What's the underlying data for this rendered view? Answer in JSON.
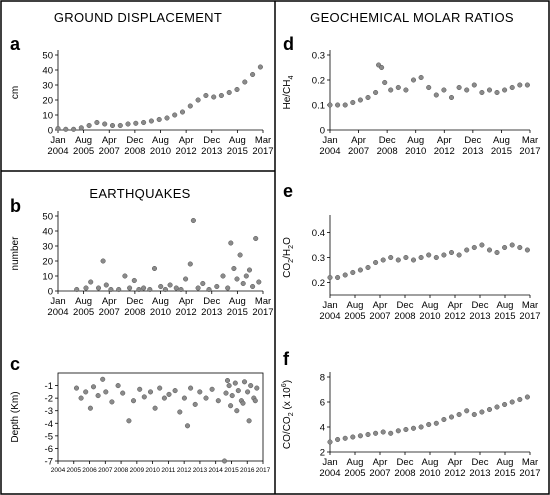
{
  "titles": {
    "left_top": "GROUND DISPLACEMENT",
    "left_mid": "EARTHQUAKES",
    "right_top": "GEOCHEMICAL MOLAR RATIOS"
  },
  "chart_data": [
    {
      "panel": "a",
      "type": "scatter",
      "title": "",
      "ylabel": "cm",
      "xlabel": "",
      "xlim": [
        2004.0,
        2017.17
      ],
      "ylim": [
        0,
        50
      ],
      "yticks": [
        0,
        10,
        20,
        30,
        40,
        50
      ],
      "xtick_labels": [
        [
          "Jan",
          "2004"
        ],
        [
          "Aug",
          "2005"
        ],
        [
          "Apr",
          "2007"
        ],
        [
          "Dec",
          "2008"
        ],
        [
          "Aug",
          "2010"
        ],
        [
          "Apr",
          "2012"
        ],
        [
          "Dec",
          "2013"
        ],
        [
          "Aug",
          "2015"
        ],
        [
          "Mar",
          "2017"
        ]
      ],
      "x": [
        2004.0,
        2004.5,
        2005.0,
        2005.5,
        2006.0,
        2006.5,
        2007.0,
        2007.5,
        2008.0,
        2008.5,
        2009.0,
        2009.5,
        2010.0,
        2010.5,
        2011.0,
        2011.5,
        2012.0,
        2012.5,
        2013.0,
        2013.5,
        2014.0,
        2014.5,
        2015.0,
        2015.5,
        2016.0,
        2016.5,
        2017.0
      ],
      "y": [
        1,
        0.5,
        0.5,
        1.5,
        3,
        5,
        4,
        3,
        3,
        4,
        4.5,
        5,
        6,
        7,
        8,
        10,
        12,
        16,
        20,
        23,
        22,
        23,
        25,
        27,
        32,
        37,
        42
      ]
    },
    {
      "panel": "b",
      "type": "scatter",
      "title": "",
      "ylabel": "number",
      "xlabel": "",
      "xlim": [
        2004.0,
        2017.17
      ],
      "ylim": [
        0,
        50
      ],
      "yticks": [
        0,
        10,
        20,
        30,
        40,
        50
      ],
      "xtick_labels": [
        [
          "Jan",
          "2004"
        ],
        [
          "Aug",
          "2005"
        ],
        [
          "Apr",
          "2007"
        ],
        [
          "Dec",
          "2008"
        ],
        [
          "Aug",
          "2010"
        ],
        [
          "Apr",
          "2012"
        ],
        [
          "Dec",
          "2013"
        ],
        [
          "Aug",
          "2015"
        ],
        [
          "Mar",
          "2017"
        ]
      ],
      "x": [
        2005.2,
        2005.8,
        2006.1,
        2006.6,
        2006.9,
        2007.1,
        2007.4,
        2007.9,
        2008.3,
        2008.6,
        2008.9,
        2009.2,
        2009.5,
        2009.9,
        2010.2,
        2010.6,
        2010.9,
        2011.2,
        2011.6,
        2011.9,
        2012.2,
        2012.5,
        2012.7,
        2013.0,
        2013.3,
        2013.7,
        2014.2,
        2014.6,
        2014.9,
        2015.1,
        2015.3,
        2015.5,
        2015.7,
        2015.9,
        2016.1,
        2016.3,
        2016.5,
        2016.7,
        2016.9
      ],
      "y": [
        1,
        2,
        6,
        2,
        20,
        4,
        1,
        1,
        10,
        2,
        7,
        1,
        2,
        1,
        15,
        3,
        1,
        4,
        2,
        1,
        8,
        18,
        47,
        2,
        5,
        1,
        3,
        10,
        2,
        32,
        15,
        8,
        24,
        5,
        10,
        14,
        3,
        35,
        6
      ]
    },
    {
      "panel": "c",
      "type": "scatter",
      "title": "",
      "ylabel": "Depth (Km)",
      "xlabel": "",
      "xlim": [
        2004,
        2017.3
      ],
      "ylim": [
        -7,
        0
      ],
      "yticks": [
        -1,
        -2,
        -3,
        -4,
        -5,
        -6,
        -7
      ],
      "xtick_labels": [
        "2004",
        "2005",
        "2006",
        "2007",
        "2008",
        "2009",
        "2010",
        "2011",
        "2012",
        "2013",
        "2014",
        "2015",
        "2016",
        "2017"
      ],
      "x": [
        2005.2,
        2005.5,
        2005.8,
        2006.1,
        2006.3,
        2006.6,
        2006.9,
        2007.1,
        2007.5,
        2007.9,
        2008.2,
        2008.6,
        2008.9,
        2009.3,
        2009.6,
        2010.0,
        2010.3,
        2010.6,
        2010.9,
        2011.2,
        2011.6,
        2011.9,
        2012.2,
        2012.4,
        2012.6,
        2012.9,
        2013.2,
        2013.6,
        2014.0,
        2014.4,
        2014.8,
        2015.0,
        2015.1,
        2015.3,
        2015.5,
        2015.7,
        2015.9,
        2016.1,
        2016.3,
        2016.5,
        2016.7,
        2016.9,
        2015.2,
        2015.6,
        2016.0,
        2016.4,
        2016.8,
        2014.9
      ],
      "y": [
        -1.2,
        -2.0,
        -1.5,
        -2.8,
        -1.1,
        -1.8,
        -0.5,
        -1.5,
        -2.3,
        -1.0,
        -1.6,
        -3.8,
        -2.2,
        -1.3,
        -1.9,
        -1.5,
        -2.8,
        -1.2,
        -2.0,
        -1.7,
        -1.4,
        -3.1,
        -2.0,
        -4.2,
        -1.2,
        -2.5,
        -1.5,
        -2.0,
        -1.3,
        -2.2,
        -7.0,
        -0.6,
        -1.0,
        -1.8,
        -0.8,
        -1.4,
        -2.2,
        -0.7,
        -1.5,
        -1.0,
        -2.0,
        -1.2,
        -2.6,
        -3.0,
        -2.4,
        -3.8,
        -2.2,
        -1.6
      ]
    },
    {
      "panel": "d",
      "type": "scatter",
      "title": "",
      "ylabel": "He/CH4",
      "xlabel": "",
      "xlim": [
        2004.0,
        2017.17
      ],
      "ylim": [
        0,
        0.3
      ],
      "yticks": [
        0,
        0.1,
        0.2,
        0.3
      ],
      "xtick_labels": [
        [
          "Jan",
          "2004"
        ],
        [
          "Apr",
          "2007"
        ],
        [
          "Dec",
          "2008"
        ],
        [
          "Aug",
          "2010"
        ],
        [
          "Apr",
          "2012"
        ],
        [
          "Dec",
          "2013"
        ],
        [
          "Aug",
          "2015"
        ],
        [
          "Mar",
          "2017"
        ]
      ],
      "x": [
        2004.0,
        2004.5,
        2005.0,
        2005.5,
        2006.0,
        2006.5,
        2007.0,
        2007.2,
        2007.4,
        2007.6,
        2008.0,
        2008.5,
        2009.0,
        2009.5,
        2010.0,
        2010.5,
        2011.0,
        2011.5,
        2012.0,
        2012.5,
        2013.0,
        2013.5,
        2014.0,
        2014.5,
        2015.0,
        2015.5,
        2016.0,
        2016.5,
        2017.0
      ],
      "y": [
        0.1,
        0.1,
        0.1,
        0.11,
        0.12,
        0.13,
        0.15,
        0.26,
        0.25,
        0.19,
        0.16,
        0.17,
        0.16,
        0.2,
        0.21,
        0.17,
        0.14,
        0.16,
        0.13,
        0.17,
        0.16,
        0.18,
        0.15,
        0.16,
        0.15,
        0.16,
        0.17,
        0.18,
        0.18
      ]
    },
    {
      "panel": "e",
      "type": "scatter",
      "title": "",
      "ylabel": "CO2/H2O",
      "xlabel": "",
      "xlim": [
        2004.0,
        2017.17
      ],
      "ylim": [
        0.15,
        0.45
      ],
      "yticks": [
        0.2,
        0.3,
        0.4
      ],
      "xtick_labels": [
        [
          "Jan",
          "2004"
        ],
        [
          "Aug",
          "2005"
        ],
        [
          "Apr",
          "2007"
        ],
        [
          "Dec",
          "2008"
        ],
        [
          "Aug",
          "2010"
        ],
        [
          "Apr",
          "2012"
        ],
        [
          "Dec",
          "2013"
        ],
        [
          "Aug",
          "2015"
        ],
        [
          "Mar",
          "2017"
        ]
      ],
      "x": [
        2004.0,
        2004.5,
        2005.0,
        2005.5,
        2006.0,
        2006.5,
        2007.0,
        2007.5,
        2008.0,
        2008.5,
        2009.0,
        2009.5,
        2010.0,
        2010.5,
        2011.0,
        2011.5,
        2012.0,
        2012.5,
        2013.0,
        2013.5,
        2014.0,
        2014.5,
        2015.0,
        2015.5,
        2016.0,
        2016.5,
        2017.0
      ],
      "y": [
        0.22,
        0.22,
        0.23,
        0.24,
        0.25,
        0.26,
        0.28,
        0.29,
        0.3,
        0.29,
        0.3,
        0.29,
        0.3,
        0.31,
        0.3,
        0.31,
        0.32,
        0.31,
        0.33,
        0.34,
        0.35,
        0.33,
        0.32,
        0.34,
        0.35,
        0.34,
        0.33
      ]
    },
    {
      "panel": "f",
      "type": "scatter",
      "title": "",
      "ylabel": "CO/CO2 (x 10^6)",
      "xlabel": "",
      "xlim": [
        2004.0,
        2017.17
      ],
      "ylim": [
        2,
        8
      ],
      "yticks": [
        2,
        4,
        6,
        8
      ],
      "xtick_labels": [
        [
          "Jan",
          "2004"
        ],
        [
          "Aug",
          "2005"
        ],
        [
          "Apr",
          "2007"
        ],
        [
          "Dec",
          "2008"
        ],
        [
          "Aug",
          "2010"
        ],
        [
          "Apr",
          "2012"
        ],
        [
          "Dec",
          "2013"
        ],
        [
          "Aug",
          "2015"
        ],
        [
          "Mar",
          "2017"
        ]
      ],
      "x": [
        2004.0,
        2004.5,
        2005.0,
        2005.5,
        2006.0,
        2006.5,
        2007.0,
        2007.5,
        2008.0,
        2008.5,
        2009.0,
        2009.5,
        2010.0,
        2010.5,
        2011.0,
        2011.5,
        2012.0,
        2012.5,
        2013.0,
        2013.5,
        2014.0,
        2014.5,
        2015.0,
        2015.5,
        2016.0,
        2016.5,
        2017.0
      ],
      "y": [
        2.8,
        3.0,
        3.1,
        3.2,
        3.3,
        3.4,
        3.5,
        3.6,
        3.5,
        3.7,
        3.8,
        3.9,
        4.0,
        4.2,
        4.3,
        4.6,
        4.8,
        5.0,
        5.3,
        5.0,
        5.2,
        5.4,
        5.6,
        5.8,
        6.0,
        6.2,
        6.4
      ]
    }
  ]
}
